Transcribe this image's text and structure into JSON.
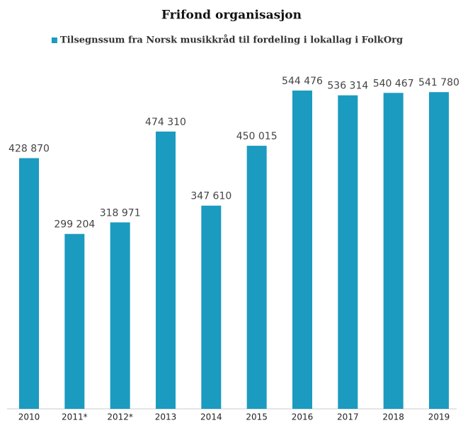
{
  "chart_data": {
    "type": "bar",
    "title": "Frifond organisasjon",
    "categories": [
      "2010",
      "2011*",
      "2012*",
      "2013",
      "2014",
      "2015",
      "2016",
      "2017",
      "2018",
      "2019"
    ],
    "series": [
      {
        "name": "Tilsegnssum fra Norsk musikkråd til fordeling i lokallag i FolkOrg",
        "color": "#1b9bc0",
        "values": [
          428870,
          299204,
          318971,
          474310,
          347610,
          450015,
          544476,
          536314,
          540467,
          541780
        ],
        "value_labels": [
          "428 870",
          "299 204",
          "318 971",
          "474 310",
          "347 610",
          "450 015",
          "544 476",
          "536 314",
          "540 467",
          "541 780"
        ]
      }
    ]
  }
}
